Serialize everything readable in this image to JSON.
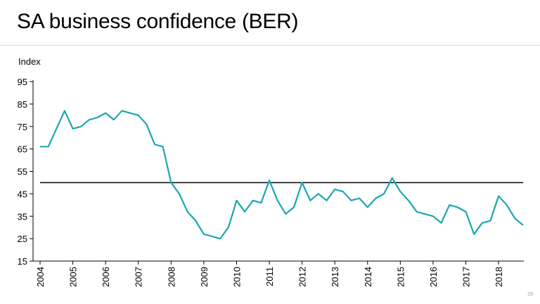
{
  "title": "SA business confidence (BER)",
  "page_number": "29",
  "chart_data": {
    "type": "line",
    "title": "SA business confidence (BER)",
    "ylabel": "Index",
    "xlabel": "",
    "ylim": [
      15,
      95
    ],
    "yticks": [
      15,
      25,
      35,
      45,
      55,
      65,
      75,
      85,
      95
    ],
    "xticks": [
      "2004",
      "2005",
      "2006",
      "2007",
      "2008",
      "2009",
      "2010",
      "2011",
      "2012",
      "2013",
      "2014",
      "2015",
      "2016",
      "2017",
      "2018"
    ],
    "reference_line": 50,
    "grid": false,
    "legend": "none",
    "line_color": "#1ba6b0",
    "reference_color": "#000000",
    "series": [
      {
        "name": "",
        "x": [
          "2004Q1",
          "2004Q2",
          "2004Q3",
          "2004Q4",
          "2005Q1",
          "2005Q2",
          "2005Q3",
          "2005Q4",
          "2006Q1",
          "2006Q2",
          "2006Q3",
          "2006Q4",
          "2007Q1",
          "2007Q2",
          "2007Q3",
          "2007Q4",
          "2008Q1",
          "2008Q2",
          "2008Q3",
          "2008Q4",
          "2009Q1",
          "2009Q2",
          "2009Q3",
          "2009Q4",
          "2010Q1",
          "2010Q2",
          "2010Q3",
          "2010Q4",
          "2011Q1",
          "2011Q2",
          "2011Q3",
          "2011Q4",
          "2012Q1",
          "2012Q2",
          "2012Q3",
          "2012Q4",
          "2013Q1",
          "2013Q2",
          "2013Q3",
          "2013Q4",
          "2014Q1",
          "2014Q2",
          "2014Q3",
          "2014Q4",
          "2015Q1",
          "2015Q2",
          "2015Q3",
          "2015Q4",
          "2016Q1",
          "2016Q2",
          "2016Q3",
          "2016Q4",
          "2017Q1",
          "2017Q2",
          "2017Q3",
          "2017Q4",
          "2018Q1",
          "2018Q2",
          "2018Q3",
          "2018Q4"
        ],
        "values": [
          66,
          66,
          74,
          82,
          74,
          75,
          78,
          79,
          81,
          78,
          82,
          81,
          80,
          76,
          67,
          66,
          50,
          45,
          37,
          33,
          27,
          26,
          25,
          30,
          42,
          37,
          42,
          41,
          51,
          42,
          36,
          39,
          50,
          42,
          45,
          42,
          47,
          46,
          42,
          43,
          39,
          43,
          45,
          52,
          46,
          42,
          37,
          36,
          35,
          32,
          40,
          39,
          37,
          27,
          32,
          33,
          44,
          40,
          34,
          31
        ]
      }
    ]
  }
}
